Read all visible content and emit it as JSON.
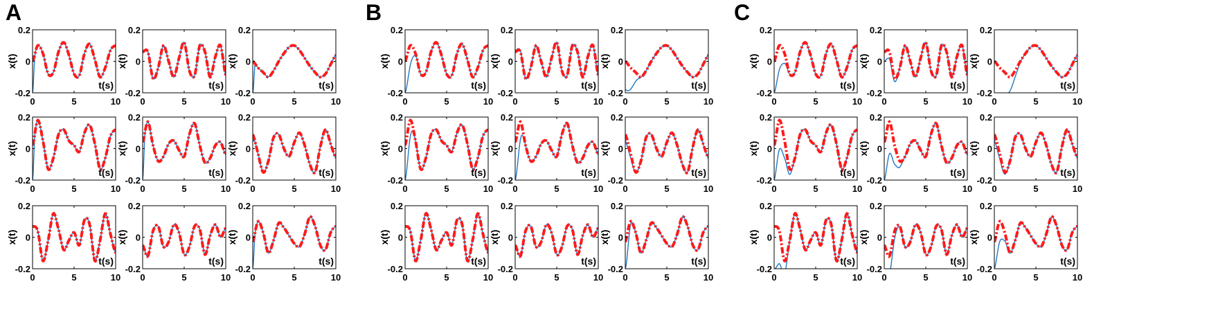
{
  "panels": [
    "A",
    "B",
    "C"
  ],
  "colors": {
    "reference": "#ff1a1a",
    "tracking": "#1f77c4",
    "axis": "#000000"
  },
  "chart_data": [
    {
      "panel": "A",
      "type": "line",
      "grid": false,
      "xlabel": "t(s)",
      "ylabel": "x(t)",
      "xlim": [
        0,
        10
      ],
      "ylim": [
        -0.2,
        0.2
      ],
      "xticks": [
        "0",
        "5",
        "10"
      ],
      "yticks": [
        "-0.2",
        "0",
        "0.2"
      ],
      "subplots": [
        {
          "row": 1,
          "col": 1,
          "reference_y": [
            0.0,
            0.1,
            0.05,
            -0.08,
            -0.07,
            0.06,
            0.12,
            0.04,
            -0.08,
            -0.09,
            0.05,
            0.11,
            0.01,
            -0.1,
            -0.04,
            0.07,
            0.1
          ],
          "tracking_start": -0.2,
          "tracking_settle": 0.3
        },
        {
          "row": 1,
          "col": 2,
          "reference_y": [
            0.06,
            0.06,
            -0.11,
            -0.04,
            0.1,
            0.0,
            -0.1,
            0.02,
            0.12,
            -0.06,
            -0.09,
            0.1,
            0.06,
            -0.1,
            0.03,
            0.1,
            -0.09
          ],
          "tracking_start": 0.07,
          "tracking_settle": 0.3
        },
        {
          "row": 1,
          "col": 3,
          "reference_y": [
            0.0,
            -0.04,
            -0.07,
            -0.1,
            -0.06,
            0.0,
            0.05,
            0.09,
            0.1,
            0.07,
            0.02,
            -0.03,
            -0.07,
            -0.1,
            -0.08,
            -0.02,
            0.04
          ],
          "tracking_start": -0.2,
          "tracking_settle": 0.3
        },
        {
          "row": 2,
          "col": 1,
          "reference_y": [
            0.02,
            0.18,
            0.05,
            -0.13,
            -0.06,
            0.09,
            0.12,
            0.05,
            0.02,
            -0.02,
            0.1,
            0.15,
            0.03,
            -0.13,
            -0.06,
            0.08,
            0.12
          ],
          "tracking_start": -0.2,
          "tracking_settle": 0.3
        },
        {
          "row": 2,
          "col": 2,
          "reference_y": [
            0.04,
            0.17,
            0.02,
            -0.08,
            -0.05,
            0.03,
            0.05,
            -0.01,
            -0.05,
            0.09,
            0.16,
            0.02,
            -0.09,
            -0.06,
            0.02,
            0.04,
            -0.04
          ],
          "tracking_start": -0.2,
          "tracking_settle": 0.3
        },
        {
          "row": 2,
          "col": 3,
          "reference_y": [
            0.09,
            -0.03,
            -0.15,
            -0.08,
            0.07,
            0.09,
            0.0,
            -0.05,
            0.04,
            0.1,
            0.02,
            -0.1,
            -0.15,
            0.01,
            0.12,
            0.03,
            -0.06
          ],
          "tracking_start": 0.05,
          "tracking_settle": 0.3
        },
        {
          "row": 3,
          "col": 1,
          "reference_y": [
            0.07,
            0.04,
            -0.15,
            -0.02,
            0.15,
            0.05,
            -0.08,
            -0.02,
            0.03,
            -0.05,
            0.11,
            0.08,
            -0.15,
            -0.02,
            0.15,
            0.02,
            -0.1
          ],
          "tracking_start": 0.07,
          "tracking_settle": 0.3
        },
        {
          "row": 3,
          "col": 2,
          "reference_y": [
            -0.05,
            -0.12,
            0.04,
            0.07,
            -0.06,
            -0.03,
            0.08,
            0.03,
            -0.11,
            -0.06,
            0.07,
            0.05,
            -0.11,
            0.01,
            0.08,
            0.0,
            0.06
          ],
          "tracking_start": -0.05,
          "tracking_settle": 0.3
        },
        {
          "row": 3,
          "col": 3,
          "reference_y": [
            -0.03,
            0.1,
            0.03,
            -0.1,
            -0.02,
            0.09,
            0.06,
            0.01,
            -0.04,
            -0.06,
            0.02,
            0.13,
            0.07,
            -0.05,
            -0.08,
            0.03,
            0.07
          ],
          "tracking_start": -0.2,
          "tracking_settle": 0.3
        }
      ]
    },
    {
      "panel": "B",
      "type": "line",
      "grid": false,
      "xlabel": "t(s)",
      "ylabel": "x(t)",
      "xlim": [
        0,
        10
      ],
      "ylim": [
        -0.2,
        0.2
      ],
      "xticks": [
        "0",
        "5",
        "10"
      ],
      "yticks": [
        "-0.2",
        "0",
        "0.2"
      ],
      "subplots": [
        {
          "row": 1,
          "col": 1,
          "reference_y": [
            0.0,
            0.1,
            0.05,
            -0.08,
            -0.07,
            0.06,
            0.12,
            0.04,
            -0.08,
            -0.09,
            0.05,
            0.11,
            0.01,
            -0.1,
            -0.04,
            0.07,
            0.1
          ],
          "tracking_start": -0.2,
          "tracking_settle": 1.5
        },
        {
          "row": 1,
          "col": 2,
          "reference_y": [
            0.06,
            0.06,
            -0.11,
            -0.04,
            0.1,
            0.0,
            -0.1,
            0.02,
            0.12,
            -0.06,
            -0.09,
            0.1,
            0.06,
            -0.1,
            0.03,
            0.1,
            -0.09
          ],
          "tracking_start": 0.07,
          "tracking_settle": 1.5
        },
        {
          "row": 1,
          "col": 3,
          "reference_y": [
            0.0,
            -0.04,
            -0.07,
            -0.1,
            -0.06,
            0.0,
            0.05,
            0.09,
            0.1,
            0.07,
            0.02,
            -0.03,
            -0.07,
            -0.1,
            -0.08,
            -0.02,
            0.04
          ],
          "tracking_start": -0.18,
          "tracking_settle": 2.0
        },
        {
          "row": 2,
          "col": 1,
          "reference_y": [
            0.02,
            0.18,
            0.05,
            -0.13,
            -0.06,
            0.09,
            0.12,
            0.05,
            0.02,
            -0.02,
            0.1,
            0.15,
            0.03,
            -0.13,
            -0.06,
            0.08,
            0.12
          ],
          "tracking_start": -0.2,
          "tracking_settle": 1.2
        },
        {
          "row": 2,
          "col": 2,
          "reference_y": [
            0.04,
            0.17,
            0.02,
            -0.08,
            -0.05,
            0.03,
            0.05,
            -0.01,
            -0.05,
            0.09,
            0.16,
            0.02,
            -0.09,
            -0.06,
            0.02,
            0.04,
            -0.04
          ],
          "tracking_start": -0.2,
          "tracking_settle": 1.2
        },
        {
          "row": 2,
          "col": 3,
          "reference_y": [
            0.09,
            -0.03,
            -0.15,
            -0.08,
            0.07,
            0.09,
            0.0,
            -0.05,
            0.04,
            0.1,
            0.02,
            -0.1,
            -0.15,
            0.01,
            0.12,
            0.03,
            -0.06
          ],
          "tracking_start": 0.05,
          "tracking_settle": 1.5
        },
        {
          "row": 3,
          "col": 1,
          "reference_y": [
            0.07,
            0.04,
            -0.15,
            -0.02,
            0.15,
            0.05,
            -0.08,
            -0.02,
            0.03,
            -0.05,
            0.11,
            0.08,
            -0.15,
            -0.02,
            0.15,
            0.02,
            -0.1
          ],
          "tracking_start": 0.07,
          "tracking_settle": 0.8
        },
        {
          "row": 3,
          "col": 2,
          "reference_y": [
            -0.05,
            -0.12,
            0.04,
            0.07,
            -0.06,
            -0.03,
            0.08,
            0.03,
            -0.11,
            -0.06,
            0.07,
            0.05,
            -0.11,
            0.01,
            0.08,
            0.0,
            0.06
          ],
          "tracking_start": -0.05,
          "tracking_settle": 0.8
        },
        {
          "row": 3,
          "col": 3,
          "reference_y": [
            -0.03,
            0.1,
            0.03,
            -0.1,
            -0.02,
            0.09,
            0.06,
            0.01,
            -0.04,
            -0.06,
            0.02,
            0.13,
            0.07,
            -0.05,
            -0.08,
            0.03,
            0.07
          ],
          "tracking_start": -0.2,
          "tracking_settle": 0.8
        }
      ]
    },
    {
      "panel": "C",
      "type": "line",
      "grid": false,
      "xlabel": "t(s)",
      "ylabel": "x(t)",
      "xlim": [
        0,
        10
      ],
      "ylim": [
        -0.2,
        0.2
      ],
      "xticks": [
        "0",
        "5",
        "10"
      ],
      "yticks": [
        "-0.2",
        "0",
        "0.2"
      ],
      "subplots": [
        {
          "row": 1,
          "col": 1,
          "reference_y": [
            0.0,
            0.1,
            0.05,
            -0.08,
            -0.07,
            0.06,
            0.12,
            0.04,
            -0.08,
            -0.09,
            0.05,
            0.11,
            0.01,
            -0.1,
            -0.04,
            0.07,
            0.1
          ],
          "tracking_start": -0.2,
          "tracking_settle": 2.0
        },
        {
          "row": 1,
          "col": 2,
          "reference_y": [
            0.06,
            0.06,
            -0.11,
            -0.04,
            0.1,
            0.0,
            -0.1,
            0.02,
            0.12,
            -0.06,
            -0.09,
            0.1,
            0.06,
            -0.1,
            0.03,
            0.1,
            -0.09
          ],
          "tracking_start": 0.0,
          "tracking_settle": 2.0
        },
        {
          "row": 1,
          "col": 3,
          "reference_y": [
            0.0,
            -0.04,
            -0.07,
            -0.1,
            -0.06,
            0.0,
            0.05,
            0.09,
            0.1,
            0.07,
            0.02,
            -0.03,
            -0.07,
            -0.1,
            -0.08,
            -0.02,
            0.04
          ],
          "tracking_start": -0.2,
          "tracking_settle": 3.5
        },
        {
          "row": 2,
          "col": 1,
          "reference_y": [
            0.02,
            0.18,
            0.05,
            -0.13,
            -0.06,
            0.09,
            0.12,
            0.05,
            0.02,
            -0.02,
            0.1,
            0.15,
            0.03,
            -0.13,
            -0.06,
            0.08,
            0.12
          ],
          "tracking_start": -0.2,
          "tracking_settle": 2.5
        },
        {
          "row": 2,
          "col": 2,
          "reference_y": [
            0.04,
            0.17,
            0.02,
            -0.08,
            -0.05,
            0.03,
            0.05,
            -0.01,
            -0.05,
            0.09,
            0.16,
            0.02,
            -0.09,
            -0.06,
            0.02,
            0.04,
            -0.04
          ],
          "tracking_start": -0.2,
          "tracking_settle": 2.5
        },
        {
          "row": 2,
          "col": 3,
          "reference_y": [
            0.09,
            -0.03,
            -0.15,
            -0.08,
            0.07,
            0.09,
            0.0,
            -0.05,
            0.04,
            0.1,
            0.02,
            -0.1,
            -0.15,
            0.01,
            0.12,
            0.03,
            -0.06
          ],
          "tracking_start": 0.05,
          "tracking_settle": 2.0
        },
        {
          "row": 3,
          "col": 1,
          "reference_y": [
            0.07,
            0.04,
            -0.15,
            -0.02,
            0.15,
            0.05,
            -0.08,
            -0.02,
            0.03,
            -0.05,
            0.11,
            0.08,
            -0.15,
            -0.02,
            0.15,
            0.02,
            -0.1
          ],
          "tracking_start": -0.2,
          "tracking_settle": 2.0
        },
        {
          "row": 3,
          "col": 2,
          "reference_y": [
            -0.05,
            -0.12,
            0.04,
            0.07,
            -0.06,
            -0.03,
            0.08,
            0.03,
            -0.11,
            -0.06,
            0.07,
            0.05,
            -0.11,
            0.01,
            0.08,
            0.0,
            0.06
          ],
          "tracking_start": -0.2,
          "tracking_settle": 2.0
        },
        {
          "row": 3,
          "col": 3,
          "reference_y": [
            -0.03,
            0.1,
            0.03,
            -0.1,
            -0.02,
            0.09,
            0.06,
            0.01,
            -0.04,
            -0.06,
            0.02,
            0.13,
            0.07,
            -0.05,
            -0.08,
            0.03,
            0.07
          ],
          "tracking_start": -0.2,
          "tracking_settle": 2.0
        }
      ]
    }
  ]
}
